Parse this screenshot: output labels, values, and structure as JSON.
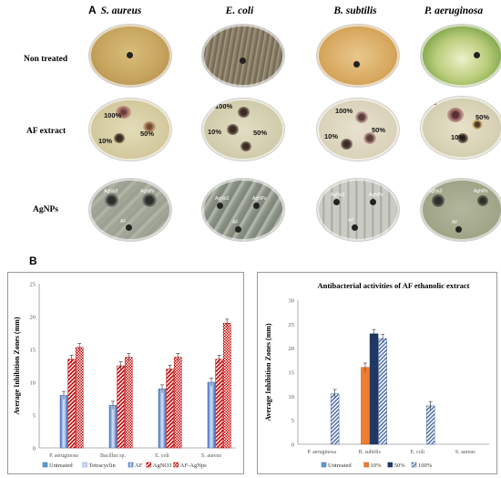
{
  "panel_a": {
    "letter": "A",
    "species": [
      "S. aureus",
      "E. coli",
      "B. subtilis",
      "P. aeruginosa"
    ],
    "rows": [
      {
        "label": "Non treated"
      },
      {
        "label": "AF extract",
        "well_labels": [
          "100%",
          "50%",
          "10%"
        ]
      },
      {
        "label": "AgNPs",
        "well_labels": [
          "AgNo3",
          "AgNPs",
          "AF"
        ]
      }
    ]
  },
  "panel_b": {
    "letter": "B"
  },
  "colors": {
    "untreated": "#5b9bd5",
    "tetracyclin": "#c5d9f1",
    "af": "#6a9ad4",
    "agno3": "#c00000",
    "afagnps": "#c00000",
    "ten": "#ed7d31",
    "fifty": "#1f3864",
    "hundred": "#4f6fa8"
  },
  "chart_data": [
    {
      "type": "bar",
      "title": "",
      "xlabel": "",
      "ylabel": "Average Inhibition Zones (mm)",
      "ylim": [
        0,
        25
      ],
      "yticks": [
        "0",
        "5",
        "10",
        "15",
        "20",
        "25"
      ],
      "categories": [
        "P. aeruginosa",
        "Bacillus sp.",
        "E. coli",
        "S. aureus"
      ],
      "series": [
        {
          "name": "Untreated",
          "values": [
            0,
            0,
            0,
            0
          ]
        },
        {
          "name": "Tetracyclin",
          "values": [
            0,
            0,
            0,
            0
          ]
        },
        {
          "name": "AF",
          "values": [
            8,
            6.5,
            9,
            10
          ]
        },
        {
          "name": "AgNO3",
          "values": [
            13.5,
            12.5,
            12,
            13.5
          ]
        },
        {
          "name": "AF-AgNps",
          "values": [
            15.3,
            13.8,
            13.8,
            19
          ]
        }
      ],
      "legend": "bottom",
      "grid": false
    },
    {
      "type": "bar",
      "title": "Antibacterial  activities of AF ethanolic extract",
      "xlabel": "",
      "ylabel": "Average Inhibition Zones (mm)",
      "ylim": [
        0,
        30
      ],
      "yticks": [
        "0",
        "5",
        "10",
        "15",
        "20",
        "25",
        "30"
      ],
      "categories": [
        "P. aeruginosa",
        "B. subtilis",
        "E. coli",
        "S. aureus"
      ],
      "series": [
        {
          "name": "Untreated",
          "values": [
            0,
            0,
            0,
            0
          ]
        },
        {
          "name": "10%",
          "values": [
            0,
            16,
            0,
            0
          ]
        },
        {
          "name": "50%",
          "values": [
            0,
            23,
            0,
            0
          ]
        },
        {
          "name": "100%",
          "values": [
            10.5,
            22,
            8,
            0
          ]
        }
      ],
      "legend": "bottom",
      "grid": false
    }
  ]
}
